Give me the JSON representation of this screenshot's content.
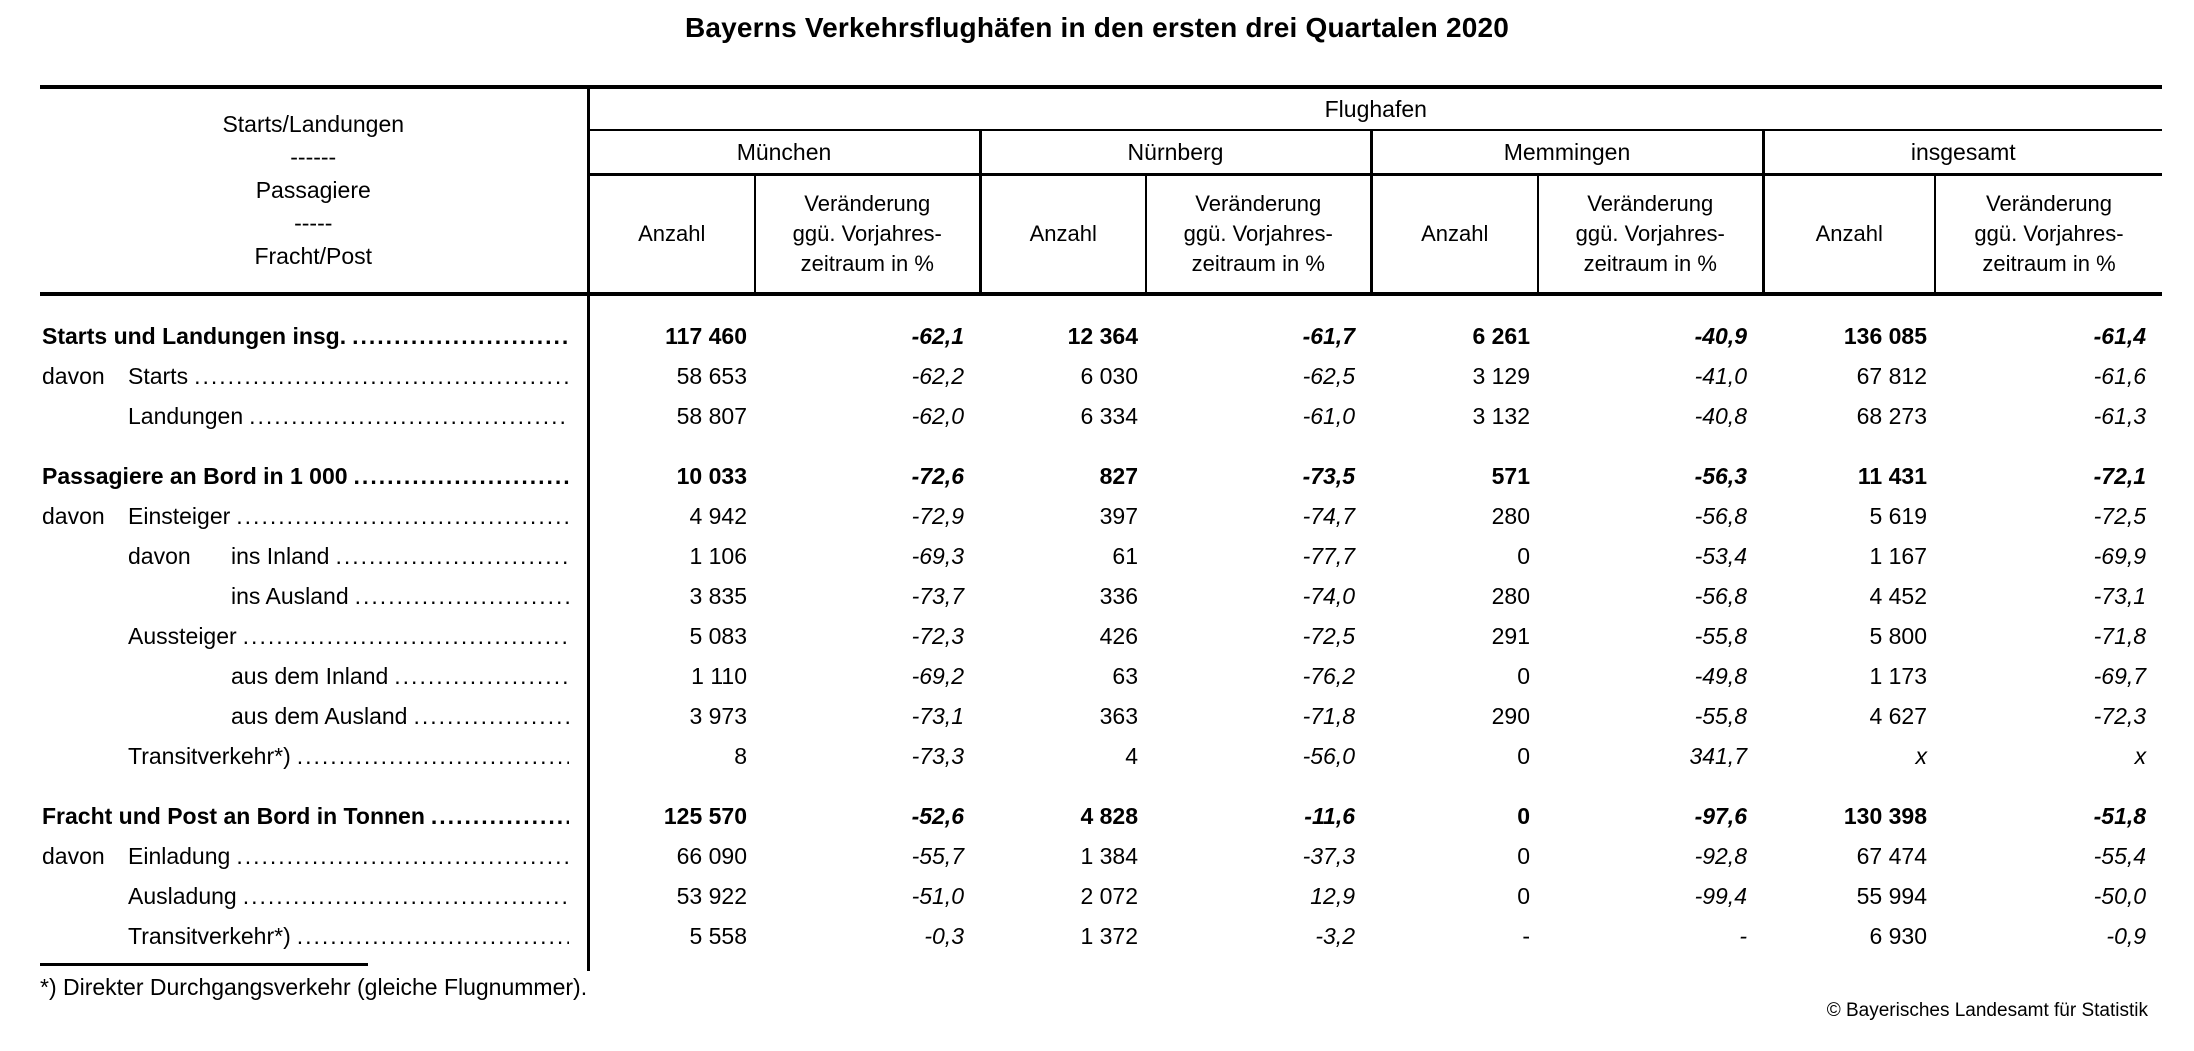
{
  "title": "Bayerns Verkehrsflughäfen in den ersten drei Quartalen 2020",
  "table": {
    "stub_lines": [
      "Starts/Landungen",
      "------",
      "Passagiere",
      "-----",
      "Fracht/Post"
    ],
    "group_header": "Flughafen",
    "airports": [
      "München",
      "Nürnberg",
      "Memmingen",
      "insgesamt"
    ],
    "measure": {
      "count_label": "Anzahl",
      "change_lines": [
        "Veränderung",
        "ggü. Vorjahres-",
        "zeitraum in %"
      ]
    },
    "rows": [
      {
        "group": true,
        "label": "Starts und Landungen insg.",
        "indent": 0,
        "values": [
          "117 460",
          "-62,1",
          "12 364",
          "-61,7",
          "6 261",
          "-40,9",
          "136 085",
          "-61,4"
        ]
      },
      {
        "prefix": "davon",
        "prefix_indent": 0,
        "label": "Starts",
        "indent": 1,
        "values": [
          "58 653",
          "-62,2",
          "6 030",
          "-62,5",
          "3 129",
          "-41,0",
          "67 812",
          "-61,6"
        ]
      },
      {
        "label": "Landungen",
        "indent": 1,
        "values": [
          "58 807",
          "-62,0",
          "6 334",
          "-61,0",
          "3 132",
          "-40,8",
          "68 273",
          "-61,3"
        ]
      },
      {
        "group": true,
        "label": "Passagiere an Bord in 1 000",
        "indent": 0,
        "values": [
          "10 033",
          "-72,6",
          "827",
          "-73,5",
          "571",
          "-56,3",
          "11 431",
          "-72,1"
        ]
      },
      {
        "prefix": "davon",
        "prefix_indent": 0,
        "label": "Einsteiger",
        "indent": 1,
        "values": [
          "4 942",
          "-72,9",
          "397",
          "-74,7",
          "280",
          "-56,8",
          "5 619",
          "-72,5"
        ]
      },
      {
        "prefix": "davon",
        "prefix_indent": 1,
        "label": "ins Inland",
        "indent": 2,
        "values": [
          "1 106",
          "-69,3",
          "61",
          "-77,7",
          "0",
          "-53,4",
          "1 167",
          "-69,9"
        ]
      },
      {
        "label": "ins Ausland",
        "indent": 2,
        "values": [
          "3 835",
          "-73,7",
          "336",
          "-74,0",
          "280",
          "-56,8",
          "4 452",
          "-73,1"
        ]
      },
      {
        "label": "Aussteiger",
        "indent": 1,
        "values": [
          "5 083",
          "-72,3",
          "426",
          "-72,5",
          "291",
          "-55,8",
          "5 800",
          "-71,8"
        ]
      },
      {
        "label": "aus dem Inland",
        "indent": 2,
        "values": [
          "1 110",
          "-69,2",
          "63",
          "-76,2",
          "0",
          "-49,8",
          "1 173",
          "-69,7"
        ]
      },
      {
        "label": "aus dem Ausland",
        "indent": 2,
        "values": [
          "3 973",
          "-73,1",
          "363",
          "-71,8",
          "290",
          "-55,8",
          "4 627",
          "-72,3"
        ]
      },
      {
        "label": "Transitverkehr*)",
        "indent": 1,
        "values": [
          "8",
          "-73,3",
          "4",
          "-56,0",
          "0",
          "341,7",
          "x",
          "x"
        ]
      },
      {
        "group": true,
        "label": "Fracht und Post an Bord in Tonnen",
        "indent": 0,
        "values": [
          "125 570",
          "-52,6",
          "4 828",
          "-11,6",
          "0",
          "-97,6",
          "130 398",
          "-51,8"
        ]
      },
      {
        "prefix": "davon",
        "prefix_indent": 0,
        "label": "Einladung",
        "indent": 1,
        "values": [
          "66 090",
          "-55,7",
          "1 384",
          "-37,3",
          "0",
          "-92,8",
          "67 474",
          "-55,4"
        ]
      },
      {
        "label": "Ausladung",
        "indent": 1,
        "values": [
          "53 922",
          "-51,0",
          "2 072",
          "12,9",
          "0",
          "-99,4",
          "55 994",
          "-50,0"
        ]
      },
      {
        "label": "Transitverkehr*)",
        "indent": 1,
        "values": [
          "5 558",
          "-0,3",
          "1 372",
          "-3,2",
          "-",
          "-",
          "6 930",
          "-0,9"
        ]
      }
    ]
  },
  "footnote": "*) Direkter Durchgangsverkehr (gleiche Flugnummer).",
  "copyright": "© Bayerisches Landesamt für Statistik"
}
